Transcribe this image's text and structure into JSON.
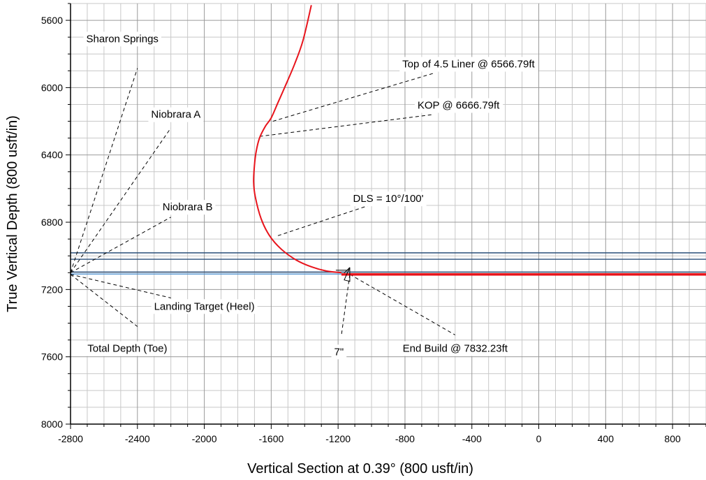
{
  "chart_data": {
    "type": "line",
    "title": "",
    "xlabel": "Vertical Section at 0.39° (800 usft/in)",
    "ylabel": "True Vertical Depth (800 usft/in)",
    "xlim": [
      -2800,
      1000
    ],
    "ylim": [
      8000,
      5500
    ],
    "y_inverted": true,
    "grid": true,
    "x_ticks": [
      -2800,
      -2400,
      -2000,
      -1600,
      -1200,
      -800,
      -400,
      0,
      400,
      800
    ],
    "x_tick_labels": [
      "-2800",
      "-2400",
      "-2000",
      "-1600",
      "-1200",
      "-800",
      "-400",
      "0",
      "400",
      "800"
    ],
    "y_ticks": [
      5600,
      6000,
      6400,
      6800,
      7200,
      7600,
      8000
    ],
    "y_tick_labels": [
      "5600",
      "6000",
      "6400",
      "6800",
      "7200",
      "7600",
      "8000"
    ],
    "series": [
      {
        "color": "#e8141c",
        "x": [
          -1180,
          -1270,
          -1360,
          -1450,
          -1540,
          -1610,
          -1660,
          -1695,
          -1705,
          -1700,
          -1690,
          -1670,
          -1635,
          -1600,
          -1560,
          -1520,
          -1460,
          -1410,
          -1360
        ],
        "y": [
          7100,
          7090,
          7065,
          7025,
          6960,
          6880,
          6780,
          6650,
          6560,
          6460,
          6380,
          6300,
          6230,
          6180,
          6090,
          6000,
          5860,
          5720,
          5510
        ]
      },
      {
        "color": "#e8141c",
        "thick": true,
        "x": [
          -1180,
          1000
        ],
        "y": [
          7110,
          7110
        ]
      }
    ],
    "formation_lines": [
      {
        "color": "#2a4f7a",
        "tvd": 6982
      },
      {
        "color": "#2a4f7a",
        "tvd": 7020
      },
      {
        "color": "#2a4f7a",
        "tvd": 7096
      },
      {
        "color": "#4a8fd0",
        "tvd": 7108
      }
    ],
    "casing_marker": {
      "x": -1130,
      "tvd": 7110,
      "label": "7\""
    },
    "annotations": [
      {
        "label": "Sharon Springs",
        "label_x": -2490,
        "label_tvd": 5730,
        "target_x": -2800,
        "target_tvd": 7100,
        "anchor_x": -2400,
        "anchor_tvd": 5885
      },
      {
        "label": "Niobrara A",
        "label_x": -2170,
        "label_tvd": 6180,
        "target_x": -2800,
        "target_tvd": 7100,
        "anchor_x": -2200,
        "anchor_tvd": 6240
      },
      {
        "label": "Niobrara B",
        "label_x": -2100,
        "label_tvd": 6730,
        "target_x": -2800,
        "target_tvd": 7100,
        "anchor_x": -2200,
        "anchor_tvd": 6770
      },
      {
        "label": "Landing Target (Heel)",
        "label_x": -2000,
        "label_tvd": 7320,
        "target_x": -2800,
        "target_tvd": 7110,
        "anchor_x": -2200,
        "anchor_tvd": 7250
      },
      {
        "label": "Total Depth (Toe)",
        "label_x": -2460,
        "label_tvd": 7570,
        "target_x": -2800,
        "target_tvd": 7110,
        "anchor_x": -2400,
        "anchor_tvd": 7420
      },
      {
        "label": "Top of 4.5 Liner @ 6566.79ft",
        "label_x": -420,
        "label_tvd": 5880,
        "target_x": -1590,
        "target_tvd": 6200,
        "anchor_x": -630,
        "anchor_tvd": 5915
      },
      {
        "label": "KOP @ 6666.79ft",
        "label_x": -480,
        "label_tvd": 6125,
        "target_x": -1670,
        "target_tvd": 6290,
        "anchor_x": -630,
        "anchor_tvd": 6160
      },
      {
        "label": "DLS = 10°/100'",
        "label_x": -900,
        "label_tvd": 6680,
        "target_x": -1560,
        "target_tvd": 6880,
        "anchor_x": -1000,
        "anchor_tvd": 6695
      },
      {
        "label": "End Build @ 7832.23ft",
        "label_x": -500,
        "label_tvd": 7570,
        "target_x": -1130,
        "target_tvd": 7110,
        "anchor_x": -500,
        "anchor_tvd": 7470
      },
      {
        "label": "7\"",
        "label_x": -1195,
        "label_tvd": 7590,
        "target_x": -1130,
        "target_tvd": 7110,
        "anchor_x": -1180,
        "anchor_tvd": 7470
      }
    ]
  }
}
